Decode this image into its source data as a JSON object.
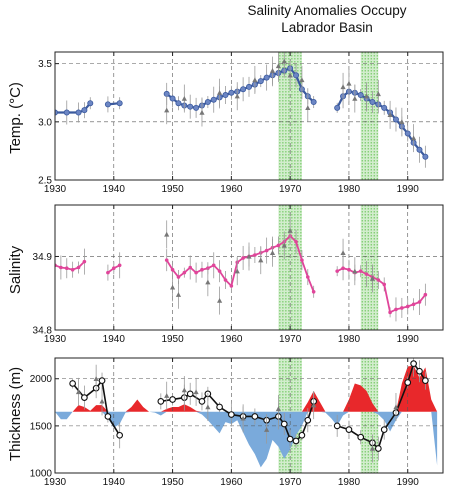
{
  "title": {
    "line1": "Salinity Anomalies Occupy",
    "line2": "Labrador Basin"
  },
  "colors": {
    "temp_series": "#3b5a9e",
    "salinity_series": "#e0459a",
    "thickness_series": "#111111",
    "positive_anomaly": "#e8282b",
    "negative_anomaly": "#7aaadb",
    "highlight_band": "#5cbf4a",
    "error_bar": "#9a9a9a",
    "open_marker": "#888888"
  },
  "chart_data": [
    {
      "type": "line",
      "panel": "temperature",
      "ylabel": "Temp. (°C)",
      "xlim": [
        1930,
        1996
      ],
      "ylim": [
        2.5,
        3.6
      ],
      "xticks": [
        1930,
        1940,
        1950,
        1960,
        1970,
        1980,
        1990
      ],
      "yticks": [
        2.5,
        3.0,
        3.5
      ],
      "ytick_labels": [
        "2.5",
        "3.0",
        "3.5"
      ],
      "grid": true,
      "highlight_bands": [
        [
          1968,
          1972
        ],
        [
          1982,
          1985
        ]
      ],
      "series": [
        {
          "role": "smoothed",
          "segments": [
            {
              "x": [
                1930,
                1932,
                1934,
                1935,
                1936
              ],
              "y": [
                3.08,
                3.08,
                3.08,
                3.1,
                3.16
              ]
            },
            {
              "x": [
                1939,
                1941
              ],
              "y": [
                3.15,
                3.16
              ]
            },
            {
              "x": [
                1949,
                1950,
                1951,
                1952,
                1953,
                1954,
                1955,
                1956,
                1957,
                1958,
                1959,
                1960,
                1961,
                1962,
                1963,
                1964,
                1965,
                1966,
                1967,
                1968,
                1969,
                1970,
                1971,
                1972,
                1973,
                1974
              ],
              "y": [
                3.24,
                3.2,
                3.16,
                3.14,
                3.13,
                3.12,
                3.14,
                3.17,
                3.19,
                3.21,
                3.23,
                3.25,
                3.26,
                3.28,
                3.3,
                3.32,
                3.35,
                3.38,
                3.4,
                3.42,
                3.44,
                3.46,
                3.4,
                3.28,
                3.22,
                3.17
              ]
            },
            {
              "x": [
                1978,
                1979,
                1980,
                1981,
                1982,
                1983,
                1984,
                1985,
                1986,
                1987,
                1988,
                1989,
                1990,
                1991,
                1992,
                1993
              ],
              "y": [
                3.12,
                3.22,
                3.26,
                3.25,
                3.23,
                3.2,
                3.17,
                3.15,
                3.12,
                3.08,
                3.02,
                2.96,
                2.9,
                2.82,
                2.76,
                2.7
              ]
            }
          ]
        },
        {
          "role": "annual",
          "x": [
            1949,
            1952,
            1955,
            1958,
            1961,
            1964,
            1967,
            1968,
            1969,
            1970,
            1972,
            1973,
            1979,
            1980,
            1981,
            1983,
            1985,
            1987,
            1989,
            1991
          ],
          "y": [
            3.1,
            3.2,
            3.08,
            3.25,
            3.22,
            3.36,
            3.44,
            3.48,
            3.52,
            3.4,
            3.36,
            3.12,
            3.3,
            3.33,
            3.2,
            3.22,
            3.24,
            3.06,
            3.0,
            2.86
          ]
        }
      ]
    },
    {
      "type": "line",
      "panel": "salinity",
      "ylabel": "Salinity",
      "xlim": [
        1930,
        1996
      ],
      "ylim": [
        34.8,
        34.97
      ],
      "xticks": [
        1930,
        1940,
        1950,
        1960,
        1970,
        1980,
        1990
      ],
      "yticks": [
        34.8,
        34.9
      ],
      "ytick_labels": [
        "34.8",
        "34.9"
      ],
      "grid": true,
      "highlight_bands": [
        [
          1968,
          1972
        ],
        [
          1982,
          1985
        ]
      ],
      "series": [
        {
          "role": "smoothed",
          "segments": [
            {
              "x": [
                1930,
                1931,
                1932,
                1933,
                1934,
                1935
              ],
              "y": [
                34.888,
                34.885,
                34.884,
                34.882,
                34.885,
                34.893
              ]
            },
            {
              "x": [
                1939,
                1940,
                1941
              ],
              "y": [
                34.878,
                34.884,
                34.888
              ]
            },
            {
              "x": [
                1949,
                1950,
                1951,
                1952,
                1953,
                1954,
                1955,
                1956,
                1957,
                1958,
                1959,
                1960,
                1961,
                1962,
                1963,
                1964,
                1965,
                1966,
                1967,
                1968,
                1969,
                1970,
                1971,
                1972,
                1973,
                1974
              ],
              "y": [
                34.895,
                34.882,
                34.872,
                34.878,
                34.885,
                34.878,
                34.882,
                34.884,
                34.888,
                34.88,
                34.868,
                34.86,
                34.892,
                34.898,
                34.9,
                34.902,
                34.905,
                34.908,
                34.912,
                34.915,
                34.92,
                34.928,
                34.92,
                34.895,
                34.872,
                34.852
              ]
            },
            {
              "x": [
                1978,
                1979,
                1980,
                1981,
                1982,
                1983,
                1984,
                1985,
                1986,
                1987,
                1988,
                1989,
                1990,
                1991,
                1992,
                1993
              ],
              "y": [
                34.88,
                34.884,
                34.882,
                34.878,
                34.88,
                34.876,
                34.872,
                34.868,
                34.862,
                34.824,
                34.828,
                34.83,
                34.832,
                34.835,
                34.838,
                34.848
              ]
            }
          ]
        },
        {
          "role": "annual",
          "x": [
            1949,
            1950,
            1951,
            1956,
            1958,
            1961,
            1963,
            1965,
            1967,
            1969,
            1970,
            1979,
            1981,
            1984
          ],
          "y": [
            34.93,
            34.858,
            34.848,
            34.865,
            34.84,
            34.88,
            34.9,
            34.895,
            34.905,
            34.915,
            34.935,
            34.905,
            34.88,
            34.87
          ]
        }
      ]
    },
    {
      "type": "area",
      "panel": "thickness",
      "ylabel": "Thickness (m)",
      "xlim": [
        1930,
        1996
      ],
      "ylim": [
        1000,
        2220
      ],
      "baseline": 1650,
      "xticks": [
        1930,
        1940,
        1950,
        1960,
        1970,
        1980,
        1990
      ],
      "xtick_labels": [
        "1930",
        "1940",
        "1950",
        "1960",
        "1970",
        "1980",
        "1990"
      ],
      "yticks": [
        1000,
        1500,
        2000
      ],
      "ytick_labels": [
        "1000",
        "1500",
        "2000"
      ],
      "grid": true,
      "highlight_bands": [
        [
          1968,
          1972
        ],
        [
          1982,
          1985
        ]
      ],
      "anomaly": {
        "x": [
          1930,
          1931,
          1932,
          1933,
          1934,
          1935,
          1936,
          1937,
          1938,
          1939,
          1940,
          1941,
          1942,
          1943,
          1944,
          1945,
          1946,
          1947,
          1948,
          1949,
          1950,
          1951,
          1952,
          1953,
          1954,
          1955,
          1956,
          1957,
          1958,
          1959,
          1960,
          1961,
          1962,
          1963,
          1964,
          1965,
          1966,
          1967,
          1968,
          1969,
          1970,
          1971,
          1972,
          1973,
          1974,
          1975,
          1976,
          1977,
          1978,
          1979,
          1980,
          1981,
          1982,
          1983,
          1984,
          1985,
          1986,
          1987,
          1988,
          1989,
          1990,
          1991,
          1992,
          1993,
          1994,
          1995
        ],
        "y": [
          1650,
          1570,
          1570,
          1650,
          1720,
          1700,
          1660,
          1720,
          1720,
          1580,
          1480,
          1520,
          1640,
          1700,
          1780,
          1700,
          1650,
          1640,
          1610,
          1680,
          1700,
          1700,
          1730,
          1700,
          1660,
          1620,
          1560,
          1490,
          1420,
          1540,
          1520,
          1560,
          1430,
          1300,
          1200,
          1060,
          1150,
          1350,
          1280,
          1150,
          1250,
          1400,
          1500,
          1750,
          1870,
          1760,
          1640,
          1580,
          1500,
          1610,
          1780,
          1950,
          1930,
          1870,
          1740,
          1620,
          1560,
          1440,
          1560,
          1950,
          2130,
          2140,
          2010,
          2120,
          1780,
          1080
        ]
      },
      "series": [
        {
          "role": "thickness",
          "segments": [
            {
              "x": [
                1933,
                1935,
                1937,
                1938,
                1939,
                1941
              ],
              "y": [
                1950,
                1800,
                1900,
                1980,
                1600,
                1400
              ]
            },
            {
              "x": [
                1948,
                1950,
                1952,
                1953,
                1955,
                1956,
                1958,
                1960,
                1962,
                1964,
                1966,
                1968,
                1969,
                1970,
                1971,
                1972,
                1973,
                1974
              ],
              "y": [
                1760,
                1780,
                1800,
                1840,
                1760,
                1840,
                1700,
                1620,
                1600,
                1600,
                1560,
                1600,
                1520,
                1360,
                1340,
                1400,
                1560,
                1760
              ]
            },
            {
              "x": [
                1978,
                1980,
                1982,
                1984,
                1985,
                1986,
                1988,
                1990,
                1991,
                1992,
                1993
              ],
              "y": [
                1500,
                1460,
                1380,
                1320,
                1260,
                1460,
                1640,
                1960,
                2160,
                2080,
                1980
              ]
            }
          ]
        },
        {
          "role": "annual",
          "x": [
            1934,
            1937,
            1938,
            1949,
            1952,
            1954,
            1956,
            1962,
            1966,
            1968,
            1974,
            1984,
            1988
          ],
          "y": [
            1860,
            2000,
            1760,
            1820,
            1880,
            1860,
            1700,
            1580,
            1460,
            1680,
            1720,
            1260,
            1700
          ]
        }
      ]
    }
  ]
}
